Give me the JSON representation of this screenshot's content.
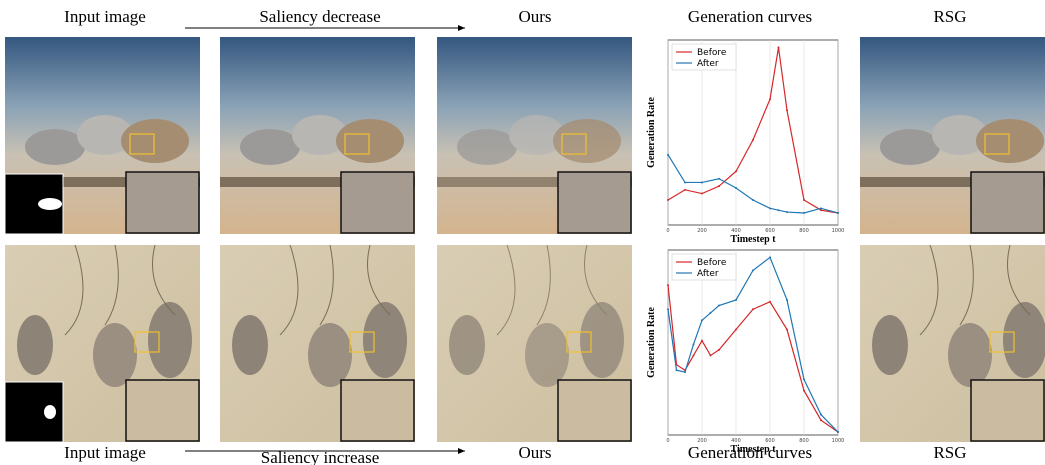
{
  "top_labels": [
    "Input image",
    "Saliency decrease",
    "Ours",
    "Generation curves",
    "RSG"
  ],
  "bottom_labels": [
    "Input image",
    "Saliency increase",
    "Ours",
    "Generation curves",
    "RSG"
  ],
  "chart_data": [
    {
      "type": "line",
      "xlabel": "Timestep t",
      "ylabel": "Generation Rate",
      "x": [
        0,
        100,
        200,
        300,
        400,
        500,
        600,
        650,
        700,
        800,
        900,
        1000
      ],
      "xlim": [
        0,
        1000
      ],
      "ylim": [
        0,
        10
      ],
      "xticks": [
        0,
        200,
        400,
        600,
        800,
        1000
      ],
      "grid": true,
      "legend": "upper left",
      "series": [
        {
          "name": "Before",
          "color": "#d62728",
          "values": [
            1.35,
            1.9,
            1.7,
            2.1,
            2.9,
            4.6,
            6.8,
            9.6,
            6.2,
            1.35,
            0.8,
            0.65
          ]
        },
        {
          "name": "After",
          "color": "#1f77b4",
          "values": [
            3.8,
            2.3,
            2.3,
            2.5,
            2.0,
            1.35,
            0.9,
            0.8,
            0.7,
            0.65,
            0.9,
            0.65
          ]
        }
      ]
    },
    {
      "type": "line",
      "xlabel": "Timestep t",
      "ylabel": "Generation Rate",
      "x": [
        0,
        50,
        100,
        150,
        200,
        250,
        300,
        400,
        500,
        600,
        700,
        800,
        900,
        1000
      ],
      "xlim": [
        0,
        1000
      ],
      "ylim": [
        0,
        10
      ],
      "xticks": [
        0,
        200,
        400,
        600,
        800,
        1000
      ],
      "grid": true,
      "legend": "upper left",
      "series": [
        {
          "name": "Before",
          "color": "#d62728",
          "values": [
            8.1,
            3.8,
            3.5,
            4.3,
            5.1,
            4.3,
            4.6,
            5.7,
            6.8,
            7.2,
            5.7,
            2.4,
            0.8,
            0.16
          ]
        },
        {
          "name": "After",
          "color": "#1f77b4",
          "values": [
            6.8,
            3.5,
            3.4,
            4.9,
            6.2,
            6.6,
            7.0,
            7.3,
            8.9,
            9.6,
            7.3,
            3.0,
            1.1,
            0.16
          ]
        }
      ]
    }
  ]
}
